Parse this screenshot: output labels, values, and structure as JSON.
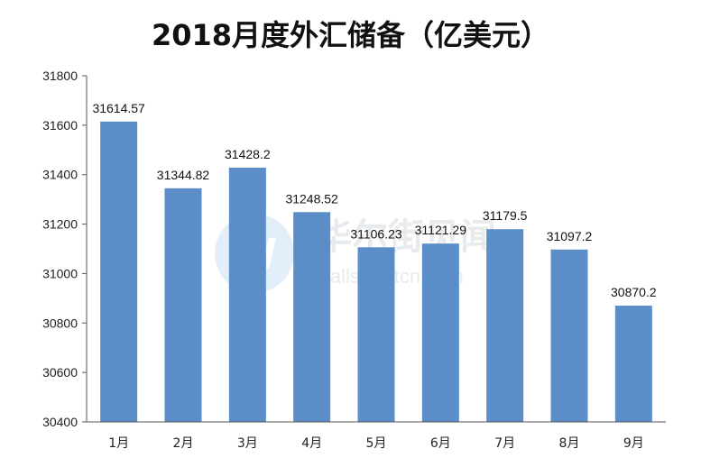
{
  "title": "2018月度外汇储备（亿美元）",
  "watermark": {
    "logo_letter": "W",
    "brand": "华尔街见闻",
    "site": "wallstreetcn.com"
  },
  "colors": {
    "bar": "#5b8ec8",
    "axis": "#555555"
  },
  "chart_data": {
    "type": "bar",
    "title": "2018月度外汇储备（亿美元）",
    "xlabel": "",
    "ylabel": "",
    "categories": [
      "1月",
      "2月",
      "3月",
      "4月",
      "5月",
      "6月",
      "7月",
      "8月",
      "9月"
    ],
    "values": [
      31614.57,
      31344.82,
      31428.2,
      31248.52,
      31106.23,
      31121.29,
      31179.5,
      31097.2,
      30870.2
    ],
    "labels": [
      "31614.57",
      "31344.82",
      "31428.2",
      "31248.52",
      "31106.23",
      "31121.29",
      "31179.5",
      "31097.2",
      "30870.2"
    ],
    "ylim": [
      30400,
      31800
    ],
    "yticks": [
      30400,
      30600,
      30800,
      31000,
      31200,
      31400,
      31600,
      31800
    ],
    "grid": false,
    "legend": "none"
  }
}
